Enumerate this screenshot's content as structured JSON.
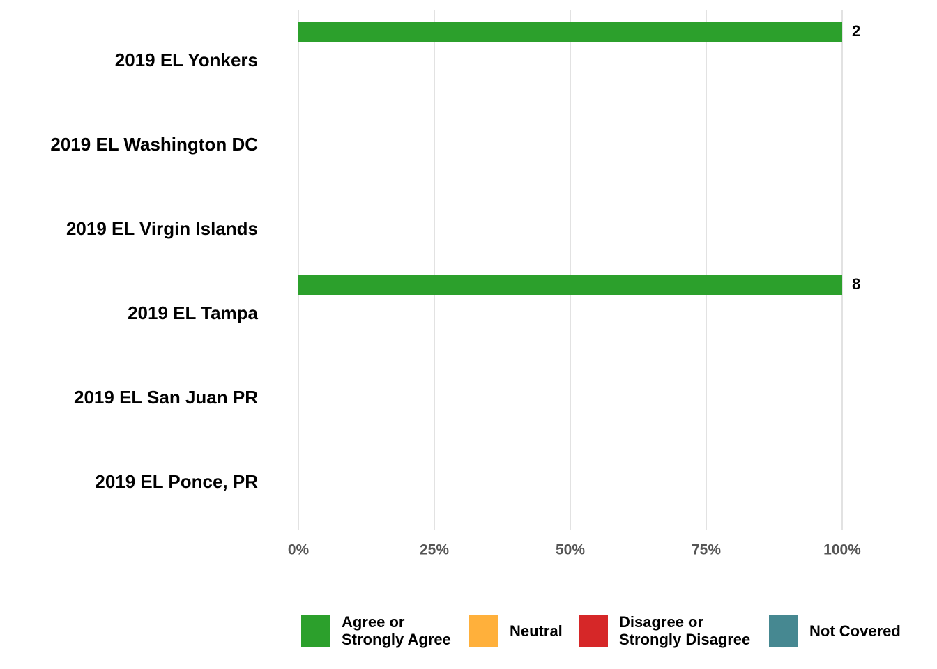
{
  "chart_data": {
    "type": "stacked-bar-horizontal",
    "categories": [
      "2019 EL Yonkers",
      "2019 EL Washington DC",
      "2019 EL Virgin Islands",
      "2019 EL Tampa",
      "2019 EL San Juan PR",
      "2019 EL Ponce, PR"
    ],
    "series": [
      {
        "name": "Agree or\nStrongly Agree",
        "color": "#2ca02c",
        "values": [
          100,
          null,
          null,
          100,
          null,
          null
        ]
      },
      {
        "name": "Neutral",
        "color": "#ffb03b",
        "values": [
          null,
          null,
          null,
          null,
          null,
          null
        ]
      },
      {
        "name": "Disagree or\nStrongly Disagree",
        "color": "#d62728",
        "values": [
          null,
          null,
          null,
          null,
          null,
          null
        ]
      },
      {
        "name": "Not Covered",
        "color": "#468891",
        "values": [
          null,
          null,
          null,
          null,
          null,
          null
        ]
      }
    ],
    "counts": [
      2,
      null,
      null,
      8,
      null,
      null
    ],
    "xlim": [
      0,
      100
    ],
    "xticks": [
      {
        "value": 0,
        "label": "0%"
      },
      {
        "value": 25,
        "label": "25%"
      },
      {
        "value": 50,
        "label": "50%"
      },
      {
        "value": 75,
        "label": "75%"
      },
      {
        "value": 100,
        "label": "100%"
      }
    ],
    "grid": true
  }
}
